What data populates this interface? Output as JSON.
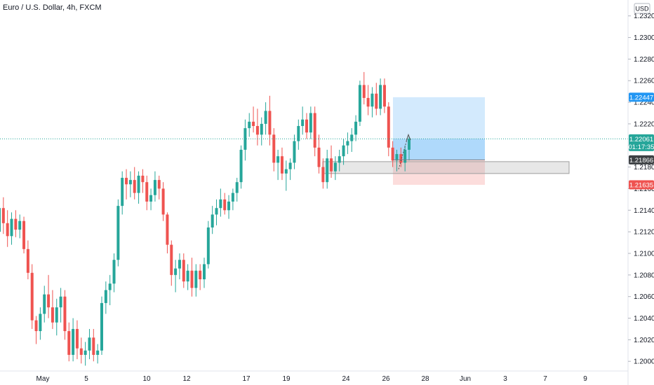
{
  "title": "Euro / U.S. Dollar, 4h, FXCM",
  "currency_button": "USD",
  "colors": {
    "up": "#26a69a",
    "down": "#ef5350",
    "current_price_tag": "#26a69a",
    "target_tag": "#2196f3",
    "entry_tag": "#3c4043",
    "stop_tag": "#ef5350",
    "profit_zone": "#2196f3",
    "loss_zone": "#ef5350",
    "support_zone": "#9e9e9e"
  },
  "chart_data": {
    "type": "candlestick",
    "title": "Euro / U.S. Dollar, 4h, FXCM",
    "ylim": [
      1.1993,
      1.2325
    ],
    "y_ticks": [
      "1.23200",
      "1.23000",
      "1.22800",
      "1.22600",
      "1.22400",
      "1.22200",
      "1.22000",
      "1.21800",
      "1.21600",
      "1.21400",
      "1.21200",
      "1.21000",
      "1.20800",
      "1.20600",
      "1.20400",
      "1.20200",
      "1.20000"
    ],
    "x_ticks": [
      "May",
      "5",
      "10",
      "12",
      "17",
      "19",
      "24",
      "26",
      "28",
      "Jun",
      "3",
      "7",
      "9"
    ],
    "price_tags": {
      "target": "1.22447",
      "current": "1.22061",
      "countdown": "01:17:35",
      "entry": "1.21866",
      "stop": "1.21635"
    },
    "position": {
      "side": "long",
      "entry": 1.21866,
      "target": 1.22447,
      "stop": 1.21635,
      "start_time": "May 26",
      "end_time": "Jun 1"
    },
    "support_zone": {
      "high": 1.2185,
      "low": 1.2174,
      "start_time": "May 23",
      "end_time": "Jun 8"
    },
    "candles_ohlc": [
      [
        1.212,
        1.215,
        1.2098,
        1.2142
      ],
      [
        1.2142,
        1.2152,
        1.2118,
        1.2128
      ],
      [
        1.2128,
        1.214,
        1.2106,
        1.2116
      ],
      [
        1.2116,
        1.2138,
        1.2108,
        1.2132
      ],
      [
        1.2132,
        1.214,
        1.2115,
        1.2122
      ],
      [
        1.2122,
        1.2136,
        1.2114,
        1.213
      ],
      [
        1.213,
        1.2134,
        1.21,
        1.2104
      ],
      [
        1.2104,
        1.2112,
        1.2076,
        1.2082
      ],
      [
        1.2082,
        1.209,
        1.203,
        1.2038
      ],
      [
        1.2038,
        1.2042,
        1.2016,
        1.2028
      ],
      [
        1.2028,
        1.205,
        1.202,
        1.2044
      ],
      [
        1.2044,
        1.207,
        1.2036,
        1.2062
      ],
      [
        1.2062,
        1.208,
        1.204,
        1.205
      ],
      [
        1.205,
        1.2066,
        1.203,
        1.2036
      ],
      [
        1.2036,
        1.2058,
        1.2024,
        1.205
      ],
      [
        1.205,
        1.2068,
        1.2036,
        1.206
      ],
      [
        1.206,
        1.2066,
        1.202,
        1.2028
      ],
      [
        1.2028,
        1.2036,
        1.2,
        1.2006
      ],
      [
        1.2006,
        1.204,
        1.2,
        1.203
      ],
      [
        1.203,
        1.2038,
        1.2002,
        1.2012
      ],
      [
        1.2012,
        1.2022,
        1.1998,
        1.2006
      ],
      [
        1.2006,
        1.2018,
        1.1996,
        1.201
      ],
      [
        1.201,
        1.203,
        1.2002,
        1.2022
      ],
      [
        1.2022,
        1.203,
        1.2,
        1.2006
      ],
      [
        1.2006,
        1.2016,
        1.1998,
        1.201
      ],
      [
        1.201,
        1.206,
        1.2006,
        1.2054
      ],
      [
        1.2054,
        1.2074,
        1.2044,
        1.2066
      ],
      [
        1.2066,
        1.208,
        1.2052,
        1.2072
      ],
      [
        1.2072,
        1.21,
        1.2064,
        1.2094
      ],
      [
        1.2094,
        1.215,
        1.2088,
        1.2144
      ],
      [
        1.2144,
        1.2176,
        1.2136,
        1.217
      ],
      [
        1.217,
        1.2178,
        1.215,
        1.2164
      ],
      [
        1.2164,
        1.2176,
        1.2152,
        1.2168
      ],
      [
        1.2168,
        1.218,
        1.215,
        1.2156
      ],
      [
        1.2156,
        1.2176,
        1.2146,
        1.2172
      ],
      [
        1.2172,
        1.2178,
        1.2156,
        1.2166
      ],
      [
        1.2166,
        1.2172,
        1.214,
        1.2148
      ],
      [
        1.2148,
        1.216,
        1.214,
        1.2154
      ],
      [
        1.2154,
        1.2176,
        1.2148,
        1.2168
      ],
      [
        1.2168,
        1.2172,
        1.215,
        1.216
      ],
      [
        1.216,
        1.2166,
        1.213,
        1.2136
      ],
      [
        1.2136,
        1.2138,
        1.21,
        1.2108
      ],
      [
        1.2108,
        1.2112,
        1.207,
        1.208
      ],
      [
        1.208,
        1.2094,
        1.2064,
        1.2086
      ],
      [
        1.2086,
        1.21,
        1.2076,
        1.2094
      ],
      [
        1.2094,
        1.21,
        1.2068,
        1.2074
      ],
      [
        1.2074,
        1.209,
        1.2066,
        1.2084
      ],
      [
        1.2084,
        1.2096,
        1.206,
        1.2068
      ],
      [
        1.2068,
        1.209,
        1.206,
        1.2084
      ],
      [
        1.2084,
        1.209,
        1.2066,
        1.2076
      ],
      [
        1.2076,
        1.2096,
        1.2068,
        1.209
      ],
      [
        1.209,
        1.213,
        1.2086,
        1.2124
      ],
      [
        1.2124,
        1.2144,
        1.2118,
        1.2136
      ],
      [
        1.2136,
        1.215,
        1.2126,
        1.2142
      ],
      [
        1.2142,
        1.216,
        1.2134,
        1.215
      ],
      [
        1.215,
        1.2156,
        1.2136,
        1.214
      ],
      [
        1.214,
        1.2154,
        1.2132,
        1.2148
      ],
      [
        1.2148,
        1.216,
        1.214,
        1.2156
      ],
      [
        1.2156,
        1.217,
        1.2148,
        1.2166
      ],
      [
        1.2166,
        1.22,
        1.216,
        1.2196
      ],
      [
        1.2196,
        1.2224,
        1.2186,
        1.2216
      ],
      [
        1.2216,
        1.223,
        1.2208,
        1.2222
      ],
      [
        1.2222,
        1.2236,
        1.2212,
        1.2218
      ],
      [
        1.2218,
        1.2234,
        1.22,
        1.221
      ],
      [
        1.221,
        1.2226,
        1.22,
        1.222
      ],
      [
        1.222,
        1.224,
        1.221,
        1.2232
      ],
      [
        1.2232,
        1.2246,
        1.22,
        1.221
      ],
      [
        1.221,
        1.2216,
        1.2176,
        1.2184
      ],
      [
        1.2184,
        1.2196,
        1.2168,
        1.219
      ],
      [
        1.219,
        1.2198,
        1.2168,
        1.2174
      ],
      [
        1.2174,
        1.2186,
        1.2158,
        1.2178
      ],
      [
        1.2178,
        1.2188,
        1.2168,
        1.2184
      ],
      [
        1.2184,
        1.221,
        1.2178,
        1.2204
      ],
      [
        1.2204,
        1.2224,
        1.2196,
        1.2218
      ],
      [
        1.2218,
        1.2236,
        1.221,
        1.2224
      ],
      [
        1.2224,
        1.223,
        1.2206,
        1.2212
      ],
      [
        1.2212,
        1.2236,
        1.2206,
        1.223
      ],
      [
        1.223,
        1.2236,
        1.219,
        1.2198
      ],
      [
        1.2198,
        1.221,
        1.2174,
        1.218
      ],
      [
        1.218,
        1.2188,
        1.216,
        1.2166
      ],
      [
        1.2166,
        1.2196,
        1.216,
        1.2188
      ],
      [
        1.2188,
        1.22,
        1.217,
        1.2176
      ],
      [
        1.2176,
        1.219,
        1.2168,
        1.2184
      ],
      [
        1.2184,
        1.2196,
        1.2176,
        1.219
      ],
      [
        1.219,
        1.2206,
        1.2182,
        1.22
      ],
      [
        1.22,
        1.2212,
        1.2192,
        1.2204
      ],
      [
        1.2204,
        1.2216,
        1.2194,
        1.221
      ],
      [
        1.221,
        1.2228,
        1.2204,
        1.2222
      ],
      [
        1.2222,
        1.226,
        1.2218,
        1.2256
      ],
      [
        1.2256,
        1.2268,
        1.2238,
        1.2244
      ],
      [
        1.2244,
        1.2256,
        1.2228,
        1.2236
      ],
      [
        1.2236,
        1.2254,
        1.2226,
        1.2248
      ],
      [
        1.2248,
        1.2258,
        1.2228,
        1.2234
      ],
      [
        1.2234,
        1.2262,
        1.2228,
        1.2256
      ],
      [
        1.2256,
        1.2262,
        1.223,
        1.2236
      ],
      [
        1.2236,
        1.224,
        1.219,
        1.2198
      ],
      [
        1.2198,
        1.2204,
        1.218,
        1.2186
      ],
      [
        1.2186,
        1.2196,
        1.2176,
        1.2192
      ],
      [
        1.2192,
        1.2198,
        1.218,
        1.2184
      ],
      [
        1.2184,
        1.22,
        1.2176,
        1.2196
      ],
      [
        1.2196,
        1.2208,
        1.2186,
        1.2206
      ]
    ]
  }
}
